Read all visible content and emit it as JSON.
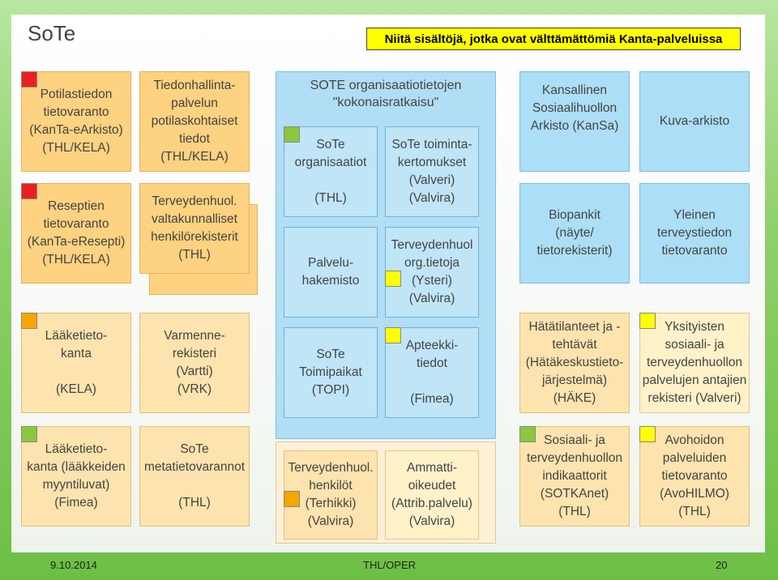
{
  "brand": "SoTe",
  "headline": "Niitä sisältöjä, jotka ovat välttämättömiä Kanta-palveluissa",
  "groups": {
    "org_solution": "SOTE organisaatiotietojen\n\"kokonaisratkaisu\""
  },
  "boxes": {
    "potilastiedon": "Potilastiedon\ntietovaranto\n(KanTa-eArkisto)\n(THL/KELA)",
    "tiedonhallinta": "Tiedonhallinta-\npalvelun\npotilaskohtaiset\ntiedot\n(THL/KELA)",
    "reseptien": "Reseptien\ntietovaranto\n(KanTa-eResepti)\n(THL/KELA)",
    "terveydenhuol_rek": "Terveydenhuol.\nvaltakunnalliset\nhenkilörekisterit\n(THL)",
    "laaketietokanta": "Lääketieto-\nkanta\n\n(KELA)",
    "varmennerekisteri": "Varmenne-\nrekisteri\n(Vartti)\n(VRK)",
    "laaketietokanta2": "Lääketieto-\nkanta (lääkkeiden\nmyyntiluvat)\n(Fimea)",
    "sote_metatieto": "SoTe\nmetatietovarannot\n\n(THL)",
    "sote_org": "SoTe\norganisaatiot\n\n(THL)",
    "sote_toiminta": "SoTe toiminta-\nkertomukset\n(Valveri)\n(Valvira)",
    "palveluhakemisto": "Palvelu-\nhakemisto",
    "terveydenhuol_org": "Terveydenhuol\norg.tietoja\n(Ysteri)\n(Valvira)",
    "sote_toimipaikat": "SoTe\nToimipaikat\n(TOPI)",
    "apteekkitiedot": "Apteekki-\ntiedot\n\n(Fimea)",
    "terveydenhuol_henk": "Terveydenhuol.\nhenkilöt\n(Terhikki)\n(Valvira)",
    "ammattioikeudet": "Ammatti-\noikeudet\n(Attrib.palvelu)\n(Valvira)",
    "kansa": "Kansallinen\nSosiaalihuollon\nArkisto (KanSa)",
    "kuva_arkisto": "Kuva-arkisto",
    "biopankit": "Biopankit\n(näyte/\ntietorekisterit)",
    "yleinen": "Yleinen\nterveystiedon\ntietovaranto",
    "hatatilanteet": "Hätätilanteet ja -\ntehtävät\n(Hätäkeskustieto-\njärjestelmä)\n(HÄKE)",
    "yksityisten": "Yksityisten\nsosiaali- ja\nterveydenhuollon\npalvelujen antajien\nrekisteri (Valveri)",
    "sotkanet": "Sosiaali- ja\nterveydenhuollon\nindikaattorit\n(SOTKAnet)\n(THL)",
    "avohilmo": "Avohoidon\npalveluiden\ntietovaranto\n(AvoHILMO)\n(THL)"
  },
  "markers": {
    "red": "#e8211d",
    "orange": "#f7a600",
    "green": "#8dc63f",
    "yellow": "#ffff00"
  },
  "footer": {
    "date": "9.10.2014",
    "center": "THL/OPER",
    "page": "20"
  }
}
